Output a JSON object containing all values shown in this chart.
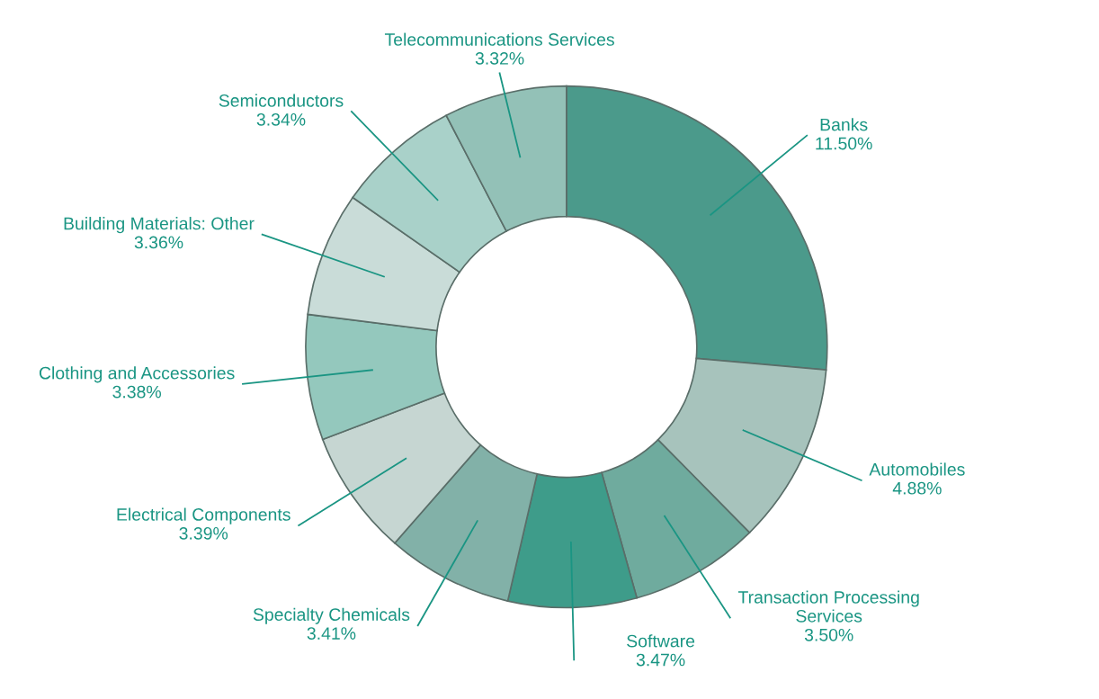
{
  "chart_data": {
    "type": "donut",
    "categories": [
      "Banks",
      "Automobiles",
      "Transaction Processing\nServices",
      "Software",
      "Specialty Chemicals",
      "Electrical Components",
      "Clothing and Accessories",
      "Building Materials: Other",
      "Semiconductors",
      "Telecommunications Services"
    ],
    "values": [
      11.5,
      4.88,
      3.5,
      3.47,
      3.41,
      3.39,
      3.38,
      3.36,
      3.34,
      3.32
    ],
    "value_labels": [
      "11.50%",
      "4.88%",
      "3.50%",
      "3.47%",
      "3.41%",
      "3.39%",
      "3.38%",
      "3.36%",
      "3.34%",
      "3.32%"
    ],
    "colors": [
      "#4b9a8b",
      "#a7c3bc",
      "#6fab9e",
      "#3e9c8a",
      "#82b1a8",
      "#c6d6d2",
      "#94c8bd",
      "#c9dcd8",
      "#a9d1c9",
      "#93c1b7"
    ],
    "legend": false
  }
}
